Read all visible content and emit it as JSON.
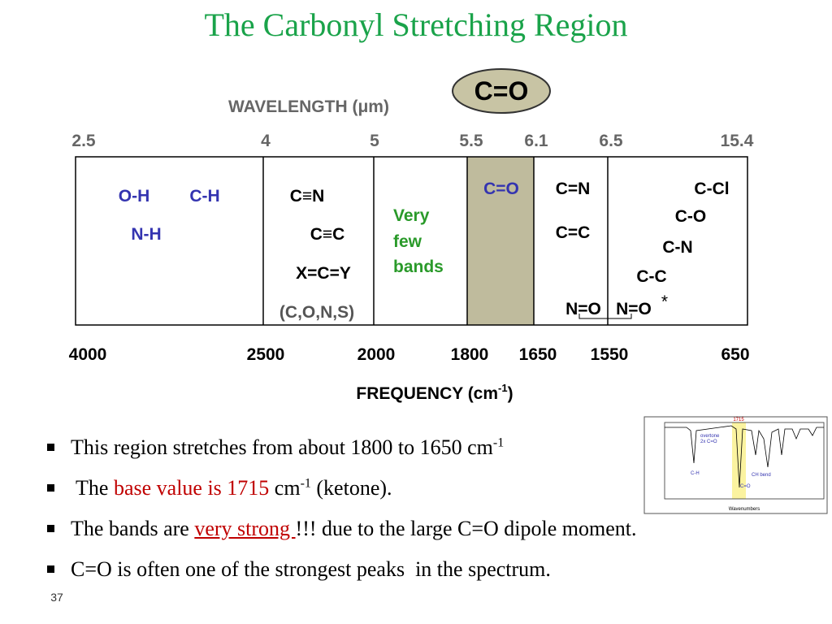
{
  "title": "The Carbonyl Stretching Region",
  "badge": "C=O",
  "wavelength": {
    "label": "WAVELENGTH (μm)",
    "ticks": [
      "2.5",
      "4",
      "5",
      "5.5",
      "6.1",
      "6.5",
      "15.4"
    ]
  },
  "frequency": {
    "label": "FREQUENCY (cm",
    "label_sup": "-1",
    "label_end": ")",
    "ticks": [
      "4000",
      "2500",
      "2000",
      "1800",
      "1650",
      "1550",
      "650"
    ]
  },
  "columns": [
    {
      "items": [
        "O-H",
        "C-H",
        "N-H"
      ]
    },
    {
      "items": [
        "C≡N",
        "C≡C",
        "X=C=Y",
        "(C,O,N,S)"
      ]
    },
    {
      "items": [
        "Very",
        "few",
        "bands"
      ]
    },
    {
      "items": [
        "C=O"
      ]
    },
    {
      "items": [
        "C=N",
        "C=C",
        "N=O"
      ]
    },
    {
      "items": [
        "N=O",
        "*",
        "C-Cl",
        "C-O",
        "C-N",
        "C-C"
      ]
    }
  ],
  "bullets": [
    [
      "This region stretches from about 1800 to 1650 cm",
      "-1"
    ],
    [
      " The ",
      "base value is 1715",
      " cm",
      "-1",
      " (ketone)."
    ],
    [
      "The bands are ",
      "very strong ",
      "!!! due to the large C=O dipole moment."
    ],
    [
      "C=O is often one of the strongest peaks  in the spectrum."
    ]
  ],
  "inset": {
    "labels": [
      "1715",
      "overtone",
      "2x C=O",
      "C-H",
      "C=O",
      "CH bend",
      "Wavenumbers"
    ]
  },
  "page_number": "37"
}
